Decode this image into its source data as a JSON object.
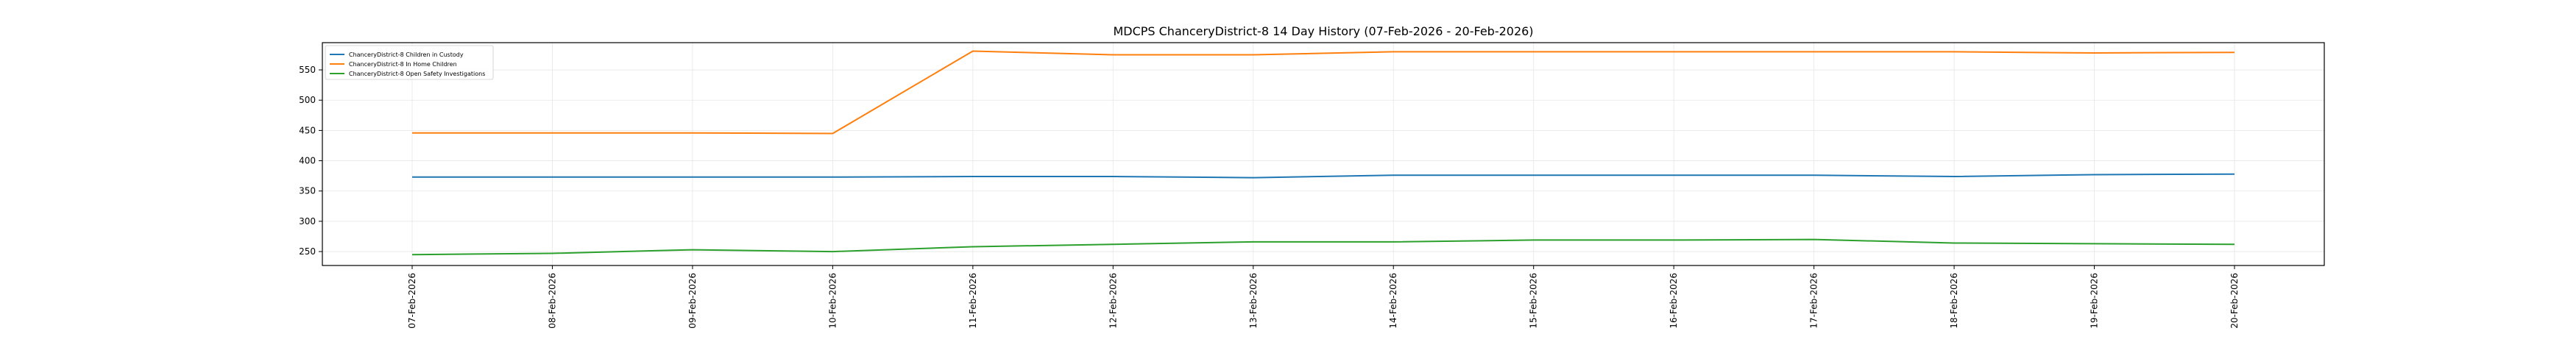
{
  "chart_data": {
    "type": "line",
    "title": "MDCPS ChanceryDistrict-8 14 Day History (07-Feb-2026 - 20-Feb-2026)",
    "xlabel": "",
    "ylabel": "",
    "categories": [
      "07-Feb-2026",
      "08-Feb-2026",
      "09-Feb-2026",
      "10-Feb-2026",
      "11-Feb-2026",
      "12-Feb-2026",
      "13-Feb-2026",
      "14-Feb-2026",
      "15-Feb-2026",
      "16-Feb-2026",
      "17-Feb-2026",
      "18-Feb-2026",
      "19-Feb-2026",
      "20-Feb-2026"
    ],
    "ylim": [
      227,
      595
    ],
    "yticks": [
      250,
      300,
      350,
      400,
      450,
      500,
      550
    ],
    "grid": true,
    "legend_position": "top-left",
    "series": [
      {
        "name": "ChanceryDistrict-8 Children in Custody",
        "color": "#1f77b4",
        "values": [
          373,
          373,
          373,
          373,
          374,
          374,
          372,
          376,
          376,
          376,
          376,
          374,
          377,
          378
        ]
      },
      {
        "name": "ChanceryDistrict-8 In Home Children",
        "color": "#ff7f0e",
        "values": [
          446,
          446,
          446,
          445,
          581,
          575,
          575,
          580,
          580,
          580,
          580,
          580,
          578,
          579
        ]
      },
      {
        "name": "ChanceryDistrict-8 Open Safety Investigations",
        "color": "#2ca02c",
        "values": [
          245,
          247,
          253,
          250,
          258,
          262,
          266,
          266,
          269,
          269,
          270,
          264,
          263,
          262
        ]
      }
    ]
  }
}
